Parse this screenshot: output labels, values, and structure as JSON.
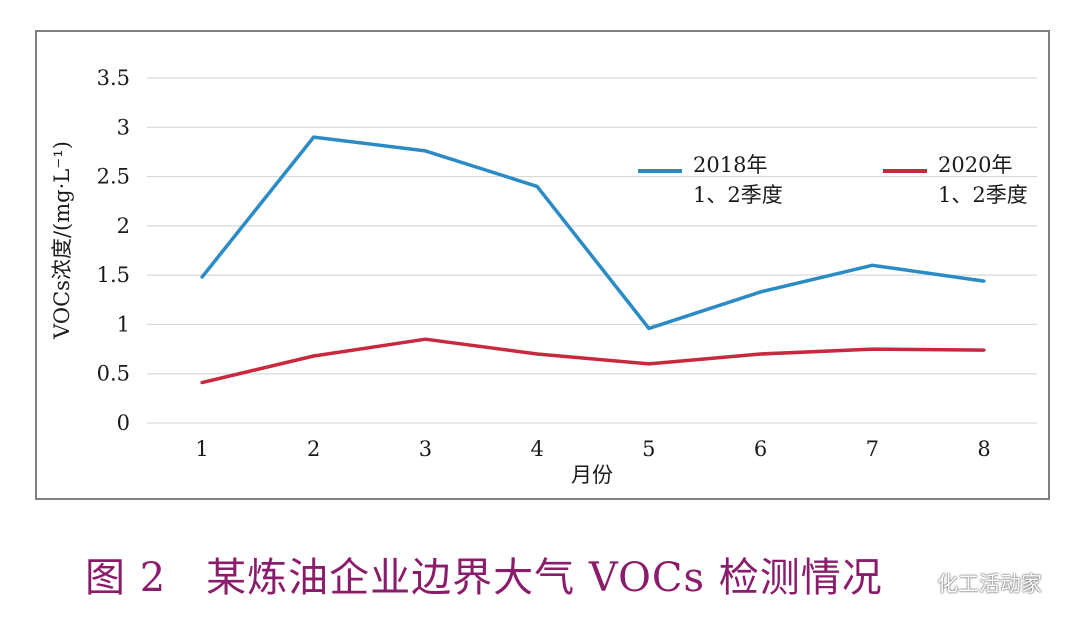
{
  "chart_data": {
    "type": "line",
    "categories": [
      "1",
      "2",
      "3",
      "4",
      "5",
      "6",
      "7",
      "8"
    ],
    "xlabel": "月份",
    "ylabel": "VOCs浓度/(mg·L⁻¹)",
    "ylim": [
      0,
      3.5
    ],
    "yticks": [
      "0",
      "0.5",
      "1",
      "1.5",
      "2",
      "2.5",
      "3",
      "3.5"
    ],
    "grid": true,
    "legend_position": "top-right",
    "series": [
      {
        "name": "2018年 1、2季度",
        "name_lines": [
          "2018年",
          "1、2季度"
        ],
        "color": "#2b8bc5",
        "values": [
          1.48,
          2.9,
          2.76,
          2.4,
          0.96,
          1.33,
          1.6,
          1.44
        ]
      },
      {
        "name": "2020年 1、2季度",
        "name_lines": [
          "2020年",
          "1、2季度"
        ],
        "color": "#c8293f",
        "values": [
          0.41,
          0.68,
          0.85,
          0.7,
          0.6,
          0.7,
          0.75,
          0.74
        ]
      }
    ]
  },
  "caption": {
    "number": "图 2",
    "text": "某炼油企业边界大气 VOCs 检测情况"
  },
  "watermark": {
    "icon": "wechat-icon",
    "text": "化工活动家"
  }
}
